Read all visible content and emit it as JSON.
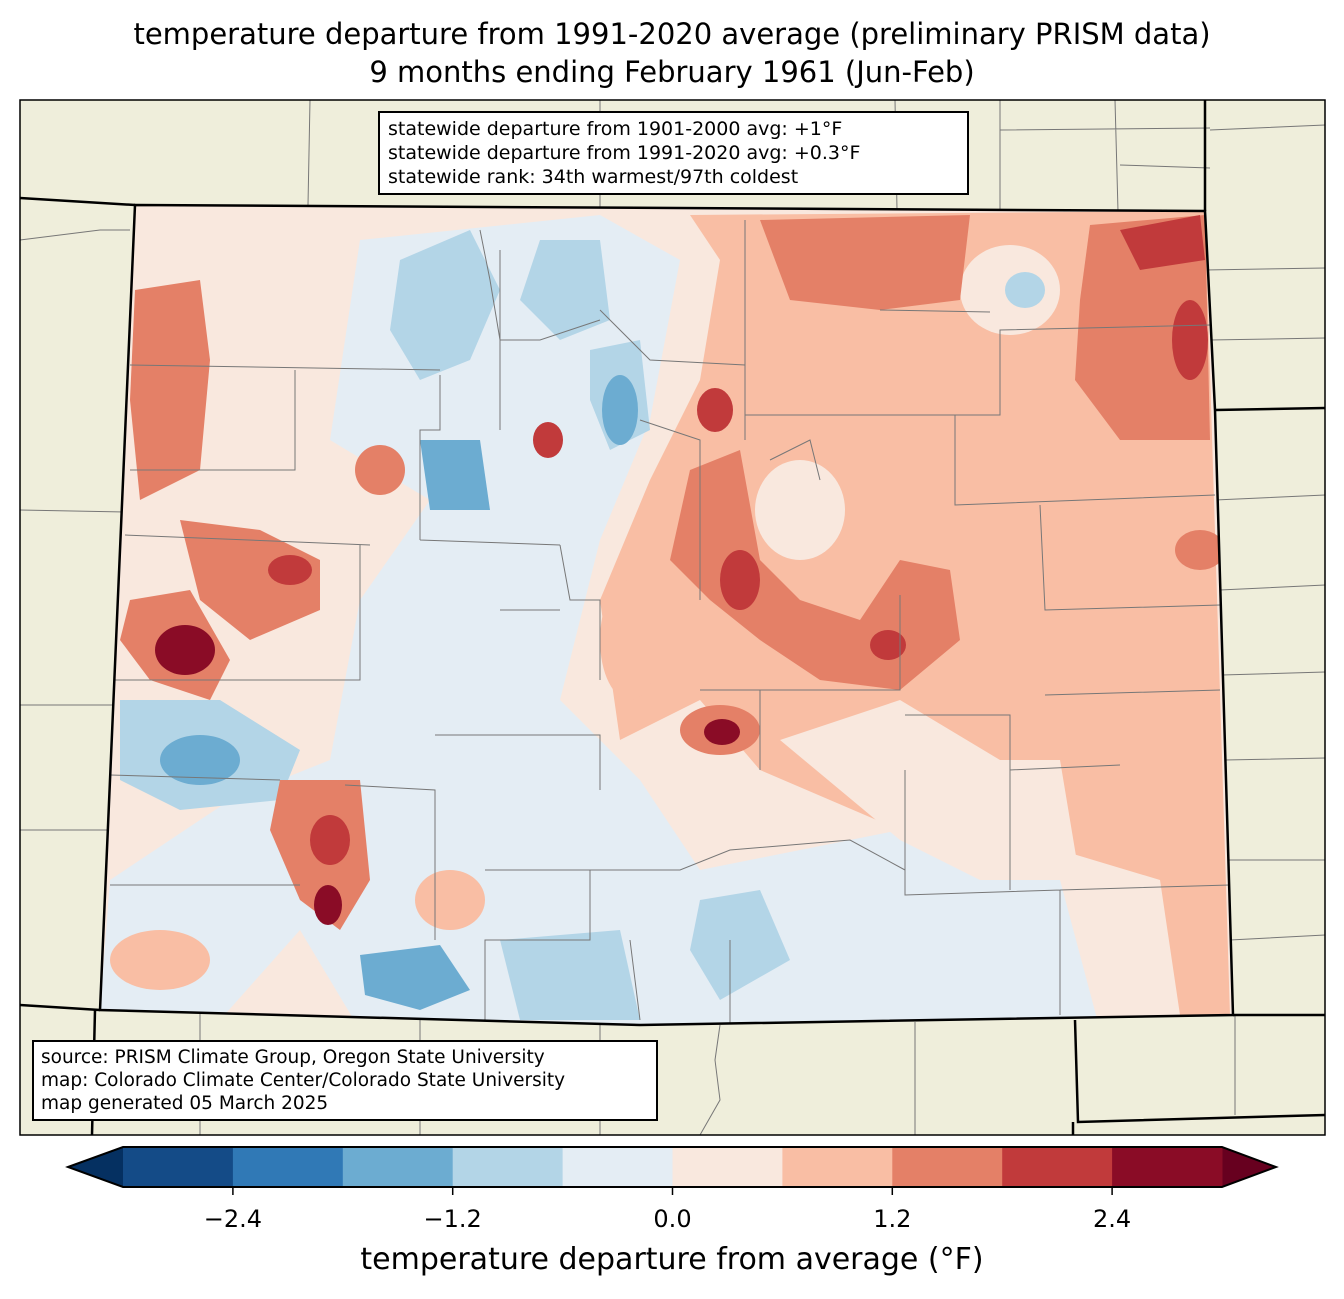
{
  "title": {
    "line1": "temperature departure from 1991-2020 average (preliminary PRISM data)",
    "line2": "9 months ending February 1961 (Jun-Feb)"
  },
  "stats": {
    "line1": "statewide departure from 1901-2000 avg: +1°F",
    "line2": "statewide departure from 1991-2020 avg: +0.3°F",
    "line3": "statewide rank: 34th warmest/97th coldest"
  },
  "source": {
    "line1": "source: PRISM Climate Group, Oregon State University",
    "line2": "map: Colorado Climate Center/Colorado State University",
    "line3": "map generated 05 March 2025"
  },
  "colors": {
    "background": "#efeedb",
    "under": "#053061",
    "over": "#67001f"
  },
  "chart_data": {
    "type": "heatmap",
    "colorbar": {
      "label": "temperature departure from average (°F)",
      "levels": [
        -3.0,
        -2.4,
        -1.8,
        -1.2,
        -0.6,
        0.0,
        0.6,
        1.2,
        1.8,
        2.4,
        3.0
      ],
      "colors": [
        "#144b87",
        "#3079b6",
        "#6cacd1",
        "#b3d5e7",
        "#e4edf4",
        "#f9e8de",
        "#f9bea4",
        "#e48067",
        "#c13a3b",
        "#8a0c26"
      ],
      "ticks": [
        "−2.4",
        "−1.2",
        "0.0",
        "1.2",
        "2.4"
      ],
      "tick_values": [
        -2.4,
        -1.2,
        0.0,
        1.2,
        2.4
      ],
      "extend": "both"
    }
  }
}
